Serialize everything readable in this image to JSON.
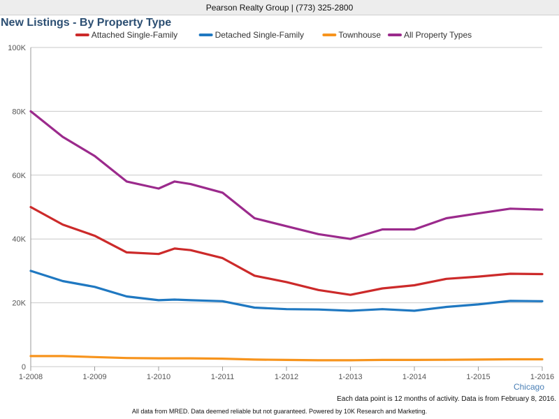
{
  "header": {
    "text": "Pearson Realty Group | (773) 325-2800"
  },
  "footer": {
    "note": "Each data point is 12 months of activity. Data is from February 8, 2016.",
    "disclaimer": "All data from MRED. Data deemed reliable but not guaranteed. Powered by 10K Research and Marketing."
  },
  "colors": {
    "title": "#2b4e72",
    "grid": "#c8c8c8",
    "axis_label": "#555555",
    "region_label": "#4a7fb5"
  },
  "chart_data": {
    "type": "line",
    "title": "New Listings - By Property Type",
    "region_label": "Chicago",
    "xlabel": "",
    "ylabel": "",
    "ylim": [
      0,
      100000
    ],
    "yticks": [
      0,
      20000,
      40000,
      60000,
      80000,
      100000
    ],
    "ytick_labels": [
      "0",
      "20K",
      "40K",
      "60K",
      "80K",
      "100K"
    ],
    "xticks": [
      "1-2008",
      "1-2009",
      "1-2010",
      "1-2011",
      "1-2012",
      "1-2013",
      "1-2014",
      "1-2015",
      "1-2016"
    ],
    "grid": true,
    "legend_position": "top",
    "x": [
      "1-2008",
      "7-2008",
      "1-2009",
      "7-2009",
      "1-2010",
      "4-2010",
      "7-2010",
      "1-2011",
      "7-2011",
      "1-2012",
      "7-2012",
      "1-2013",
      "7-2013",
      "1-2014",
      "7-2014",
      "1-2015",
      "7-2015",
      "1-2016"
    ],
    "series": [
      {
        "name": "Attached Single-Family",
        "color": "#cc2a2a",
        "values": [
          50000,
          44500,
          41000,
          35800,
          35300,
          37000,
          36500,
          34000,
          28500,
          26500,
          24000,
          22500,
          24500,
          25500,
          27500,
          28200,
          29100,
          29000
        ]
      },
      {
        "name": "Detached Single-Family",
        "color": "#1f78c1",
        "values": [
          30000,
          26800,
          25000,
          22000,
          20800,
          21000,
          20800,
          20500,
          18500,
          18000,
          17900,
          17500,
          18000,
          17500,
          18700,
          19500,
          20600,
          20500
        ]
      },
      {
        "name": "Townhouse",
        "color": "#f7941d",
        "values": [
          3300,
          3300,
          3000,
          2700,
          2600,
          2600,
          2600,
          2500,
          2200,
          2100,
          2000,
          2000,
          2100,
          2100,
          2150,
          2200,
          2300,
          2300
        ]
      },
      {
        "name": "All Property Types",
        "color": "#9b2a8c",
        "values": [
          80000,
          72000,
          66000,
          58000,
          55800,
          58000,
          57200,
          54500,
          46500,
          44000,
          41500,
          40000,
          43000,
          43000,
          46500,
          48000,
          49500,
          49200
        ]
      }
    ]
  }
}
